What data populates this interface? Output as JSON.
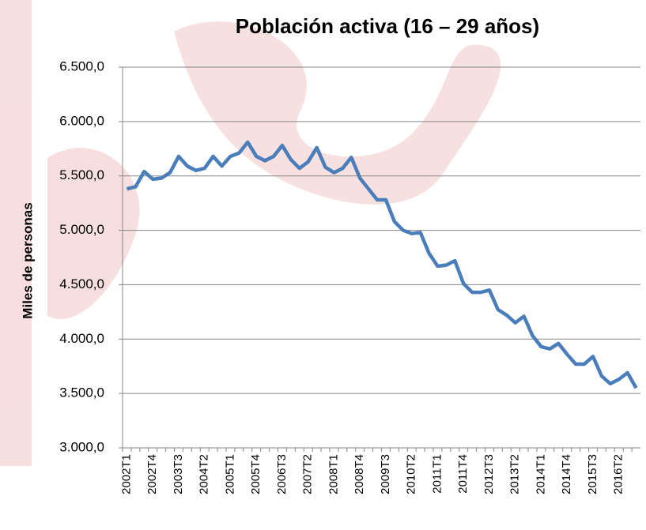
{
  "chart_data": {
    "type": "line",
    "title": "Población activa (16 – 29 años)",
    "y_label": "Miles de personas",
    "categories": [
      "2002T1",
      null,
      null,
      "2002T4",
      null,
      null,
      "2003T3",
      null,
      null,
      "2004T2",
      null,
      null,
      "2005T1",
      null,
      null,
      "2005T4",
      null,
      null,
      "2006T3",
      null,
      null,
      "2007T2",
      null,
      null,
      "2008T1",
      null,
      null,
      "2008T4",
      null,
      null,
      "2009T3",
      null,
      null,
      "2010T2",
      null,
      null,
      "2011T1",
      null,
      null,
      "2011T4",
      null,
      null,
      "2012T3",
      null,
      null,
      "2013T2",
      null,
      null,
      "2014T1",
      null,
      null,
      "2014T4",
      null,
      null,
      "2015T3",
      null,
      null,
      "2016T2",
      null,
      null
    ],
    "values": [
      5380,
      5400,
      5540,
      5470,
      5480,
      5530,
      5680,
      5590,
      5550,
      5570,
      5680,
      5590,
      5680,
      5710,
      5810,
      5680,
      5640,
      5680,
      5780,
      5650,
      5570,
      5630,
      5760,
      5580,
      5530,
      5570,
      5670,
      5480,
      5380,
      5280,
      5280,
      5080,
      5000,
      4970,
      4980,
      4790,
      4670,
      4680,
      4720,
      4510,
      4430,
      4430,
      4450,
      4270,
      4220,
      4150,
      4210,
      4030,
      3930,
      3910,
      3960,
      3860,
      3770,
      3770,
      3840,
      3660,
      3590,
      3630,
      3690,
      3550
    ],
    "color": "#4a7ebb",
    "ylim": [
      3000,
      6500
    ],
    "yticks": [
      {
        "value": 3000,
        "label": "3.000,0"
      },
      {
        "value": 3500,
        "label": "3.500,0"
      },
      {
        "value": 4000,
        "label": "4.000,0"
      },
      {
        "value": 4500,
        "label": "4.500,0"
      },
      {
        "value": 5000,
        "label": "5.000,0"
      },
      {
        "value": 5500,
        "label": "5.500,0"
      },
      {
        "value": 6000,
        "label": "6.000,0"
      },
      {
        "value": 6500,
        "label": "6.500,0"
      }
    ],
    "grid": true
  }
}
